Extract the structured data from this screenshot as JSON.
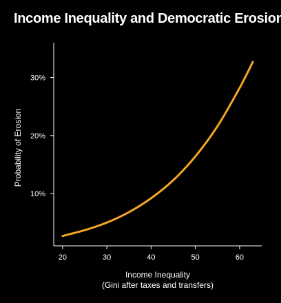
{
  "colors": {
    "background": "#000000",
    "text": "#ffffff",
    "axis": "#ffffff",
    "series": "#f5a623"
  },
  "chart_data": {
    "type": "line",
    "title": "Income Inequality and Democratic Erosion",
    "xlabel_line1": "Income Inequality",
    "xlabel_line2": "(Gini after taxes and transfers)",
    "ylabel": "Probability of Erosion",
    "xlim": [
      18,
      65
    ],
    "ylim": [
      1,
      36
    ],
    "x_ticks": [
      20,
      30,
      40,
      50,
      60
    ],
    "x_tick_labels": [
      "20",
      "30",
      "40",
      "50",
      "60"
    ],
    "y_ticks": [
      10,
      20,
      30
    ],
    "y_tick_labels": [
      "10%",
      "20%",
      "30%"
    ],
    "grid": false,
    "series": [
      {
        "x": [
          20,
          25,
          30,
          35,
          40,
          45,
          50,
          55,
          60,
          63
        ],
        "values": [
          2.7,
          3.7,
          5.0,
          6.8,
          9.2,
          12.3,
          16.4,
          21.6,
          28.2,
          32.7
        ]
      }
    ]
  }
}
